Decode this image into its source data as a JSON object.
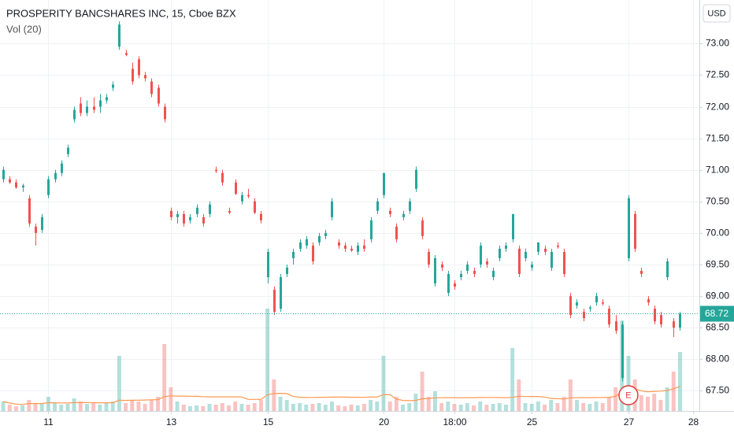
{
  "chart_data": {
    "type": "candlestick",
    "title": "PROSPERITY BANCSHARES INC, 15, Cboe BZX",
    "indicator": "Vol (20)",
    "currency": "USD",
    "earnings_marker": "E",
    "up_color": "#26a69a",
    "down_color": "#ef5350",
    "grid": true,
    "last_price": 68.72,
    "ylim": [
      67.18,
      73.69
    ],
    "yticks": [
      {
        "value": 67.5,
        "label": "67.50"
      },
      {
        "value": 68,
        "label": "68.00"
      },
      {
        "value": 68.5,
        "label": "68.50"
      },
      {
        "value": 69,
        "label": "69.00"
      },
      {
        "value": 69.5,
        "label": "69.50"
      },
      {
        "value": 70,
        "label": "70.00"
      },
      {
        "value": 70.5,
        "label": "70.50"
      },
      {
        "value": 71,
        "label": "71.00"
      },
      {
        "value": 71.5,
        "label": "71.50"
      },
      {
        "value": 72,
        "label": "72.00"
      },
      {
        "value": 72.5,
        "label": "72.50"
      },
      {
        "value": 73,
        "label": "73.00"
      }
    ],
    "xlim": [
      -0.5,
      108
    ],
    "xticks": [
      {
        "value": 7,
        "label": "11"
      },
      {
        "value": 26,
        "label": "13"
      },
      {
        "value": 41,
        "label": "15"
      },
      {
        "value": 59,
        "label": "20"
      },
      {
        "value": 70,
        "label": "18:00"
      },
      {
        "value": 82,
        "label": "25"
      },
      {
        "value": 97,
        "label": "27"
      },
      {
        "value": 107,
        "label": "28"
      }
    ],
    "candles": [
      [
        70.85,
        71.05,
        70.8,
        71.0
      ],
      [
        70.85,
        70.9,
        70.78,
        70.8
      ],
      [
        70.8,
        70.85,
        70.7,
        70.72
      ],
      [
        70.72,
        70.78,
        70.65,
        70.75
      ],
      [
        70.55,
        70.6,
        70.1,
        70.15
      ],
      [
        70.1,
        70.15,
        69.8,
        70.0
      ],
      [
        70.05,
        70.3,
        70.0,
        70.25
      ],
      [
        70.6,
        70.9,
        70.55,
        70.85
      ],
      [
        70.85,
        71.0,
        70.8,
        70.95
      ],
      [
        70.95,
        71.15,
        70.9,
        71.1
      ],
      [
        71.25,
        71.4,
        71.2,
        71.35
      ],
      [
        71.8,
        72.0,
        71.75,
        71.95
      ],
      [
        72.05,
        72.15,
        71.85,
        71.9
      ],
      [
        71.9,
        72.1,
        71.85,
        72.0
      ],
      [
        72.0,
        72.15,
        71.9,
        71.95
      ],
      [
        72.0,
        72.2,
        71.9,
        72.1
      ],
      [
        72.1,
        72.2,
        72.05,
        72.15
      ],
      [
        72.3,
        72.4,
        72.25,
        72.35
      ],
      [
        72.95,
        73.35,
        72.9,
        73.3
      ],
      [
        72.85,
        72.9,
        72.8,
        72.82
      ],
      [
        72.6,
        72.7,
        72.35,
        72.4
      ],
      [
        72.75,
        72.8,
        72.45,
        72.5
      ],
      [
        72.5,
        72.55,
        72.4,
        72.45
      ],
      [
        72.4,
        72.45,
        72.15,
        72.2
      ],
      [
        72.3,
        72.35,
        72.0,
        72.05
      ],
      [
        72.0,
        72.05,
        71.75,
        71.8
      ],
      [
        70.35,
        70.4,
        70.2,
        70.25
      ],
      [
        70.25,
        70.35,
        70.15,
        70.3
      ],
      [
        70.3,
        70.35,
        70.1,
        70.15
      ],
      [
        70.2,
        70.3,
        70.15,
        70.25
      ],
      [
        70.3,
        70.45,
        70.25,
        70.4
      ],
      [
        70.25,
        70.3,
        70.1,
        70.15
      ],
      [
        70.3,
        70.5,
        70.25,
        70.45
      ],
      [
        71.0,
        71.05,
        70.95,
        70.98
      ],
      [
        70.95,
        71.0,
        70.75,
        70.8
      ],
      [
        70.35,
        70.4,
        70.3,
        70.32
      ],
      [
        70.8,
        70.85,
        70.6,
        70.62
      ],
      [
        70.5,
        70.65,
        70.45,
        70.6
      ],
      [
        70.6,
        70.7,
        70.55,
        70.58
      ],
      [
        70.5,
        70.55,
        70.3,
        70.32
      ],
      [
        70.3,
        70.35,
        70.15,
        70.2
      ],
      [
        69.3,
        69.75,
        69.2,
        69.7
      ],
      [
        69.1,
        69.15,
        68.7,
        68.75
      ],
      [
        68.8,
        69.35,
        68.75,
        69.3
      ],
      [
        69.35,
        69.5,
        69.3,
        69.45
      ],
      [
        69.6,
        69.75,
        69.5,
        69.7
      ],
      [
        69.75,
        69.9,
        69.7,
        69.85
      ],
      [
        69.8,
        69.95,
        69.75,
        69.9
      ],
      [
        69.8,
        69.85,
        69.5,
        69.55
      ],
      [
        69.85,
        70.0,
        69.8,
        69.95
      ],
      [
        69.95,
        70.05,
        69.9,
        70.0
      ],
      [
        70.25,
        70.55,
        70.2,
        70.5
      ],
      [
        69.85,
        69.9,
        69.75,
        69.8
      ],
      [
        69.8,
        69.85,
        69.7,
        69.75
      ],
      [
        69.75,
        69.8,
        69.7,
        69.72
      ],
      [
        69.7,
        69.85,
        69.65,
        69.8
      ],
      [
        69.8,
        69.9,
        69.7,
        69.75
      ],
      [
        69.9,
        70.25,
        69.85,
        70.2
      ],
      [
        70.35,
        70.55,
        70.3,
        70.5
      ],
      [
        70.6,
        70.95,
        70.55,
        70.95
      ],
      [
        70.35,
        70.4,
        70.25,
        70.3
      ],
      [
        70.1,
        70.15,
        69.85,
        69.9
      ],
      [
        70.25,
        70.35,
        70.2,
        70.3
      ],
      [
        70.35,
        70.55,
        70.3,
        70.5
      ],
      [
        70.7,
        71.05,
        70.65,
        71.0
      ],
      [
        70.2,
        70.25,
        69.9,
        69.95
      ],
      [
        69.7,
        69.75,
        69.45,
        69.5
      ],
      [
        69.2,
        69.65,
        69.15,
        69.6
      ],
      [
        69.5,
        69.55,
        69.4,
        69.45
      ],
      [
        69.05,
        69.4,
        69.0,
        69.35
      ],
      [
        69.2,
        69.25,
        69.1,
        69.15
      ],
      [
        69.3,
        69.4,
        69.25,
        69.35
      ],
      [
        69.4,
        69.55,
        69.35,
        69.5
      ],
      [
        69.4,
        69.45,
        69.3,
        69.35
      ],
      [
        69.5,
        69.85,
        69.45,
        69.8
      ],
      [
        69.55,
        69.6,
        69.45,
        69.5
      ],
      [
        69.3,
        69.45,
        69.25,
        69.4
      ],
      [
        69.6,
        69.8,
        69.55,
        69.75
      ],
      [
        69.75,
        69.85,
        69.7,
        69.8
      ],
      [
        69.9,
        70.3,
        69.85,
        70.3
      ],
      [
        69.75,
        69.8,
        69.3,
        69.35
      ],
      [
        69.6,
        69.75,
        69.55,
        69.7
      ],
      [
        69.45,
        69.55,
        69.4,
        69.5
      ],
      [
        69.7,
        69.85,
        69.65,
        69.85
      ],
      [
        69.75,
        69.8,
        69.65,
        69.7
      ],
      [
        69.45,
        69.75,
        69.4,
        69.7
      ],
      [
        69.8,
        69.85,
        69.75,
        69.78
      ],
      [
        69.7,
        69.75,
        69.3,
        69.35
      ],
      [
        69.0,
        69.05,
        68.65,
        68.7
      ],
      [
        68.85,
        68.95,
        68.8,
        68.9
      ],
      [
        68.75,
        68.8,
        68.6,
        68.65
      ],
      [
        68.8,
        68.85,
        68.75,
        68.82
      ],
      [
        68.9,
        69.05,
        68.85,
        69.0
      ],
      [
        68.9,
        68.95,
        68.85,
        68.88
      ],
      [
        68.8,
        68.85,
        68.5,
        68.55
      ],
      [
        68.6,
        68.7,
        68.4,
        68.45
      ],
      [
        67.7,
        68.6,
        67.65,
        68.55
      ],
      [
        69.6,
        70.6,
        69.55,
        70.55
      ],
      [
        70.3,
        70.35,
        69.7,
        69.75
      ],
      [
        69.4,
        69.45,
        69.3,
        69.35
      ],
      [
        68.95,
        69.0,
        68.85,
        68.9
      ],
      [
        68.8,
        68.85,
        68.55,
        68.6
      ],
      [
        68.7,
        68.75,
        68.5,
        68.55
      ],
      [
        69.3,
        69.6,
        69.25,
        69.55
      ],
      [
        68.6,
        68.65,
        68.35,
        68.5
      ],
      [
        68.5,
        68.75,
        68.45,
        68.72
      ]
    ],
    "volume": [
      12,
      8,
      6,
      7,
      14,
      10,
      9,
      18,
      10,
      8,
      9,
      16,
      12,
      9,
      10,
      8,
      11,
      12,
      70,
      10,
      14,
      12,
      9,
      14,
      18,
      85,
      30,
      12,
      8,
      6,
      7,
      6,
      9,
      8,
      10,
      7,
      12,
      9,
      8,
      10,
      14,
      130,
      40,
      18,
      14,
      9,
      10,
      8,
      9,
      10,
      8,
      12,
      7,
      6,
      8,
      7,
      9,
      14,
      12,
      70,
      12,
      18,
      8,
      10,
      22,
      50,
      18,
      25,
      10,
      12,
      9,
      8,
      10,
      7,
      12,
      8,
      9,
      10,
      8,
      80,
      40,
      10,
      9,
      12,
      8,
      14,
      10,
      18,
      40,
      14,
      10,
      9,
      12,
      10,
      18,
      30,
      115,
      70,
      40,
      20,
      18,
      22,
      14,
      30,
      50,
      75
    ]
  }
}
